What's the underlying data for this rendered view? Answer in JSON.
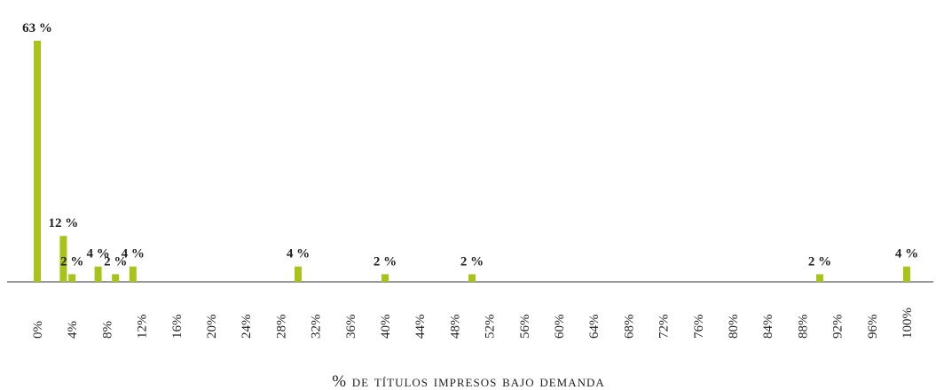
{
  "chart_data": {
    "type": "bar",
    "x": [
      0,
      3,
      4,
      7,
      9,
      11,
      30,
      40,
      50,
      90,
      100
    ],
    "values": [
      63,
      12,
      2,
      4,
      2,
      4,
      4,
      2,
      2,
      2,
      4
    ],
    "value_labels": [
      "63 %",
      "12 %",
      "2 %",
      "4 %",
      "2 %",
      "4 %",
      "4 %",
      "2 %",
      "2 %",
      "2 %",
      "4 %"
    ],
    "color": "#a9c31b",
    "xlabel": "% de títulos impresos bajo demanda",
    "xlim": [
      0,
      100
    ],
    "xticks": [
      {
        "value": 0,
        "label": "0%"
      },
      {
        "value": 4,
        "label": "4%"
      },
      {
        "value": 8,
        "label": "8%"
      },
      {
        "value": 12,
        "label": "12%"
      },
      {
        "value": 16,
        "label": "16%"
      },
      {
        "value": 20,
        "label": "20%"
      },
      {
        "value": 24,
        "label": "24%"
      },
      {
        "value": 28,
        "label": "28%"
      },
      {
        "value": 32,
        "label": "32%"
      },
      {
        "value": 36,
        "label": "36%"
      },
      {
        "value": 40,
        "label": "40%"
      },
      {
        "value": 44,
        "label": "44%"
      },
      {
        "value": 48,
        "label": "48%"
      },
      {
        "value": 52,
        "label": "52%"
      },
      {
        "value": 56,
        "label": "56%"
      },
      {
        "value": 60,
        "label": "60%"
      },
      {
        "value": 64,
        "label": "64%"
      },
      {
        "value": 68,
        "label": "68%"
      },
      {
        "value": 72,
        "label": "72%"
      },
      {
        "value": 76,
        "label": "76%"
      },
      {
        "value": 80,
        "label": "80%"
      },
      {
        "value": 84,
        "label": "84%"
      },
      {
        "value": 88,
        "label": "88%"
      },
      {
        "value": 92,
        "label": "92%"
      },
      {
        "value": 96,
        "label": "96%"
      },
      {
        "value": 100,
        "label": "100%"
      }
    ],
    "grid": false
  }
}
